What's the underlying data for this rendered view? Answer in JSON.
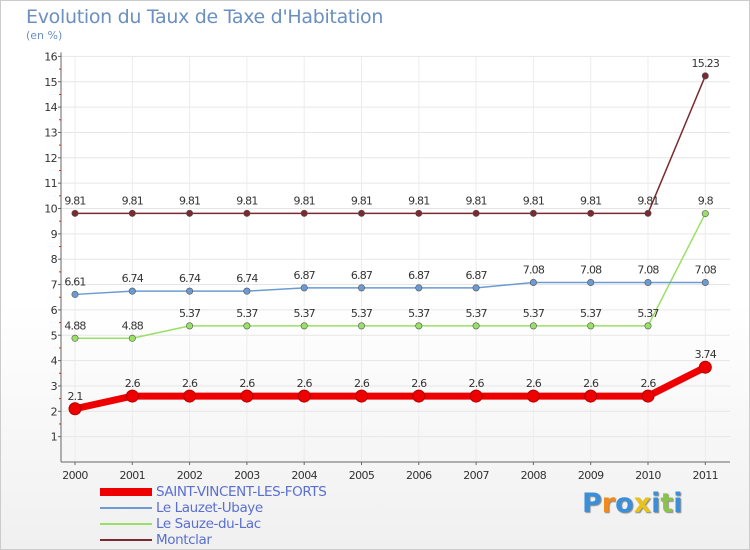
{
  "title": "Evolution du Taux de Taxe d'Habitation",
  "subtitle": "(en %)",
  "logo_text": "Proxiti",
  "chart_data": {
    "type": "line",
    "title": "Evolution du Taux de Taxe d'Habitation",
    "ylabel": "(en %)",
    "xlabel": "",
    "ylim": [
      0,
      16
    ],
    "yticks": [
      "1",
      "2",
      "3",
      "4",
      "5",
      "6",
      "7",
      "8",
      "9",
      "10",
      "11",
      "12",
      "13",
      "14",
      "15",
      "16"
    ],
    "categories": [
      "2000",
      "2001",
      "2002",
      "2003",
      "2004",
      "2005",
      "2006",
      "2007",
      "2008",
      "2009",
      "2010",
      "2011"
    ],
    "series": [
      {
        "name": "SAINT-VINCENT-LES-FORTS",
        "color": "#ee0000",
        "values": [
          2.1,
          2.6,
          2.6,
          2.6,
          2.6,
          2.6,
          2.6,
          2.6,
          2.6,
          2.6,
          2.6,
          3.74
        ],
        "labels": [
          "2.1",
          "2.6",
          "2.6",
          "2.6",
          "2.6",
          "2.6",
          "2.6",
          "2.6",
          "2.6",
          "2.6",
          "2.6",
          "3.74"
        ]
      },
      {
        "name": "Le Lauzet-Ubaye",
        "color": "#6b9bd2",
        "values": [
          6.61,
          6.74,
          6.74,
          6.74,
          6.87,
          6.87,
          6.87,
          6.87,
          7.08,
          7.08,
          7.08,
          7.08
        ],
        "labels": [
          "6.61",
          "6.74",
          "6.74",
          "6.74",
          "6.87",
          "6.87",
          "6.87",
          "6.87",
          "7.08",
          "7.08",
          "7.08",
          "7.08"
        ]
      },
      {
        "name": "Le Sauze-du-Lac",
        "color": "#99e066",
        "values": [
          4.88,
          4.88,
          5.37,
          5.37,
          5.37,
          5.37,
          5.37,
          5.37,
          5.37,
          5.37,
          5.37,
          9.8
        ],
        "labels": [
          "4.88",
          "4.88",
          "5.37",
          "5.37",
          "5.37",
          "5.37",
          "5.37",
          "5.37",
          "5.37",
          "5.37",
          "5.37",
          "9.8"
        ]
      },
      {
        "name": "Montclar",
        "color": "#7a2a30",
        "values": [
          9.81,
          9.81,
          9.81,
          9.81,
          9.81,
          9.81,
          9.81,
          9.81,
          9.81,
          9.81,
          9.81,
          15.23
        ],
        "labels": [
          "9.81",
          "9.81",
          "9.81",
          "9.81",
          "9.81",
          "9.81",
          "9.81",
          "9.81",
          "9.81",
          "9.81",
          "9.81",
          "15.23"
        ]
      }
    ],
    "legend_position": "bottom-left"
  }
}
